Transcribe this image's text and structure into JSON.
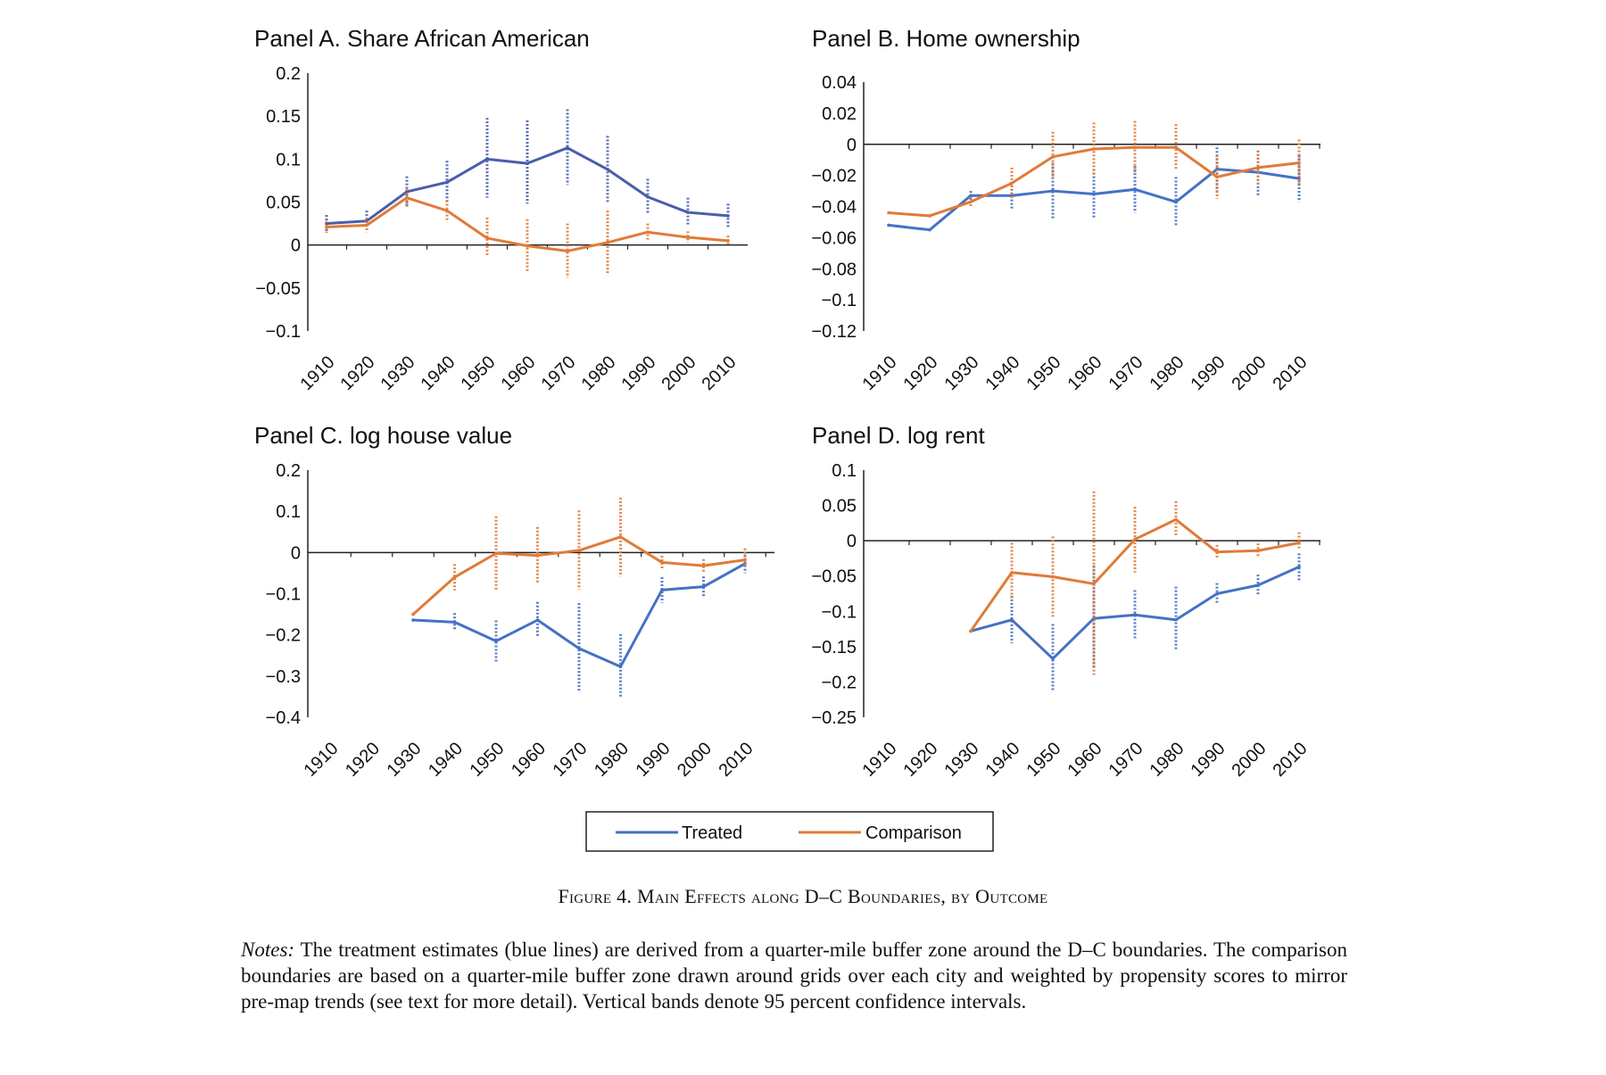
{
  "colors": {
    "treated": "#4472c4",
    "comparison": "#e07b39",
    "treated_panelA": "#4a5dab"
  },
  "legend": {
    "treated": "Treated",
    "comparison": "Comparison"
  },
  "caption": "Figure 4. Main Effects along D–C Boundaries, by Outcome",
  "notes": {
    "lead": "Notes:",
    "text": "The treatment estimates (blue lines) are derived from a quarter-mile buffer zone around the D–C boundaries. The comparison boundaries are based on a quarter-mile buffer zone drawn around grids over each city and weighted by propensity scores to mirror pre-map trends (see text for more detail). Vertical bands denote 95 percent confidence intervals."
  },
  "chart_data": [
    {
      "type": "line",
      "title": "Panel A. Share African American",
      "categories": [
        "1910",
        "1920",
        "1930",
        "1940",
        "1950",
        "1960",
        "1970",
        "1980",
        "1990",
        "2000",
        "2010"
      ],
      "ylim": [
        -0.1,
        0.2
      ],
      "yticks": [
        0.2,
        0.15,
        0.1,
        0.05,
        0,
        -0.05,
        -0.1
      ],
      "ytick_labels": [
        "0.2",
        "0.15",
        "0.1",
        "0.05",
        "0",
        "−0.05",
        "−0.1"
      ],
      "series": [
        {
          "name": "Treated",
          "values": [
            0.025,
            0.028,
            0.062,
            0.073,
            0.1,
            0.095,
            0.113,
            0.088,
            0.056,
            0.038,
            0.034
          ],
          "ci_low": [
            0.015,
            0.018,
            0.045,
            0.05,
            0.055,
            0.048,
            0.07,
            0.05,
            0.036,
            0.024,
            0.02
          ],
          "ci_high": [
            0.035,
            0.04,
            0.08,
            0.098,
            0.148,
            0.145,
            0.158,
            0.127,
            0.077,
            0.055,
            0.048
          ]
        },
        {
          "name": "Comparison",
          "values": [
            0.021,
            0.023,
            0.055,
            0.04,
            0.008,
            -0.001,
            -0.007,
            0.003,
            0.015,
            0.009,
            0.005
          ],
          "ci_low": [
            0.014,
            0.015,
            0.045,
            0.027,
            -0.012,
            -0.032,
            -0.038,
            -0.035,
            0.006,
            0.003,
            0.0
          ],
          "ci_high": [
            0.028,
            0.032,
            0.065,
            0.052,
            0.032,
            0.03,
            0.025,
            0.04,
            0.025,
            0.016,
            0.011
          ]
        }
      ]
    },
    {
      "type": "line",
      "title": "Panel B. Home ownership",
      "categories": [
        "1910",
        "1920",
        "1930",
        "1940",
        "1950",
        "1960",
        "1970",
        "1980",
        "1990",
        "2000",
        "2010"
      ],
      "ylim": [
        -0.12,
        0.04
      ],
      "yticks": [
        0.04,
        0.02,
        0,
        -0.02,
        -0.04,
        -0.06,
        -0.08,
        -0.1,
        -0.12
      ],
      "ytick_labels": [
        "0.04",
        "0.02",
        "0",
        "−0.02",
        "−0.04",
        "−0.06",
        "−0.08",
        "−0.1",
        "−0.12"
      ],
      "series": [
        {
          "name": "Treated",
          "values": [
            -0.052,
            -0.055,
            -0.033,
            -0.033,
            -0.03,
            -0.032,
            -0.029,
            -0.037,
            -0.016,
            -0.018,
            -0.022
          ],
          "ci_low": [
            null,
            null,
            -0.036,
            -0.042,
            -0.048,
            -0.048,
            -0.044,
            -0.053,
            -0.03,
            -0.033,
            -0.037
          ],
          "ci_high": [
            null,
            null,
            -0.03,
            -0.024,
            -0.012,
            -0.016,
            -0.014,
            -0.021,
            -0.002,
            -0.004,
            -0.007
          ]
        },
        {
          "name": "Comparison",
          "values": [
            -0.044,
            -0.046,
            -0.037,
            -0.025,
            -0.008,
            -0.003,
            -0.002,
            -0.002,
            -0.021,
            -0.015,
            -0.012
          ],
          "ci_low": [
            null,
            null,
            -0.04,
            -0.035,
            -0.022,
            -0.02,
            -0.018,
            -0.016,
            -0.035,
            -0.026,
            -0.026
          ],
          "ci_high": [
            null,
            null,
            -0.034,
            -0.015,
            0.008,
            0.014,
            0.015,
            0.013,
            -0.007,
            -0.004,
            0.003
          ]
        }
      ]
    },
    {
      "type": "line",
      "title": "Panel C. log house value",
      "categories": [
        "1910",
        "1920",
        "1930",
        "1940",
        "1950",
        "1960",
        "1970",
        "1980",
        "1990",
        "2000",
        "2010"
      ],
      "ylim": [
        -0.4,
        0.2
      ],
      "yticks": [
        0.2,
        0.1,
        0,
        -0.1,
        -0.2,
        -0.3,
        -0.4
      ],
      "ytick_labels": [
        "0.2",
        "0.1",
        "0",
        "−0.1",
        "−0.2",
        "−0.3",
        "−0.4"
      ],
      "series": [
        {
          "name": "Treated",
          "values": [
            null,
            null,
            -0.164,
            -0.169,
            -0.215,
            -0.164,
            -0.233,
            -0.277,
            -0.091,
            -0.083,
            -0.027
          ],
          "ci_low": [
            null,
            null,
            null,
            -0.19,
            -0.265,
            -0.205,
            -0.34,
            -0.353,
            -0.122,
            -0.108,
            -0.05
          ],
          "ci_high": [
            null,
            null,
            null,
            -0.147,
            -0.165,
            -0.12,
            -0.123,
            -0.198,
            -0.06,
            -0.058,
            -0.005
          ]
        },
        {
          "name": "Comparison",
          "values": [
            null,
            null,
            -0.15,
            -0.06,
            -0.002,
            -0.007,
            0.005,
            0.038,
            -0.024,
            -0.032,
            -0.018
          ],
          "ci_low": [
            null,
            null,
            null,
            -0.092,
            -0.092,
            -0.073,
            -0.09,
            -0.058,
            -0.04,
            -0.048,
            -0.035
          ],
          "ci_high": [
            null,
            null,
            null,
            -0.028,
            0.088,
            0.062,
            0.102,
            0.133,
            -0.008,
            -0.016,
            0.01
          ]
        }
      ]
    },
    {
      "type": "line",
      "title": "Panel D. log rent",
      "categories": [
        "1910",
        "1920",
        "1930",
        "1940",
        "1950",
        "1960",
        "1970",
        "1980",
        "1990",
        "2000",
        "2010"
      ],
      "ylim": [
        -0.25,
        0.1
      ],
      "yticks": [
        0.1,
        0.05,
        0,
        -0.05,
        -0.1,
        -0.15,
        -0.2,
        -0.25
      ],
      "ytick_labels": [
        "0.1",
        "0.05",
        "0",
        "−0.05",
        "−0.1",
        "−0.15",
        "−0.2",
        "−0.25"
      ],
      "series": [
        {
          "name": "Treated",
          "values": [
            null,
            null,
            -0.128,
            -0.112,
            -0.167,
            -0.11,
            -0.105,
            -0.112,
            -0.075,
            -0.063,
            -0.037
          ],
          "ci_low": [
            null,
            null,
            null,
            -0.145,
            -0.212,
            -0.18,
            -0.138,
            -0.155,
            -0.09,
            -0.077,
            -0.058
          ],
          "ci_high": [
            null,
            null,
            null,
            -0.078,
            -0.118,
            -0.035,
            -0.07,
            -0.065,
            -0.06,
            -0.048,
            -0.018
          ]
        },
        {
          "name": "Comparison",
          "values": [
            null,
            null,
            -0.128,
            -0.045,
            -0.051,
            -0.061,
            0.002,
            0.03,
            -0.016,
            -0.014,
            -0.003
          ],
          "ci_low": [
            null,
            null,
            null,
            -0.085,
            -0.11,
            -0.19,
            -0.045,
            0.005,
            -0.025,
            -0.022,
            -0.012
          ],
          "ci_high": [
            null,
            null,
            null,
            -0.003,
            0.006,
            0.07,
            0.048,
            0.056,
            -0.006,
            -0.004,
            0.012
          ]
        }
      ]
    }
  ]
}
